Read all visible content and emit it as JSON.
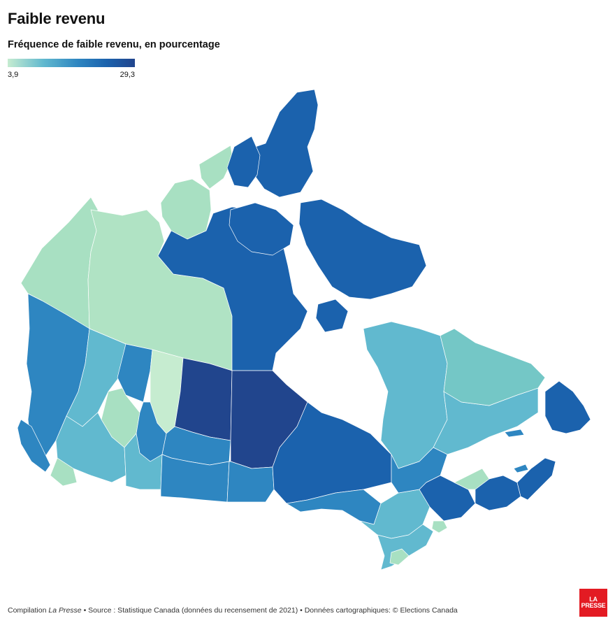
{
  "header": {
    "title": "Faible revenu",
    "subtitle": "Fréquence de faible revenu, en pourcentage"
  },
  "legend": {
    "min_label": "3,9",
    "max_label": "29,3",
    "min_value": 3.9,
    "max_value": 29.3,
    "colors": [
      "#c6ecd0",
      "#61b9cf",
      "#2e86c1",
      "#1b62ad",
      "#21458d"
    ]
  },
  "footer": {
    "prefix": "Compilation ",
    "publication": "La Presse",
    "suffix": " • Source : Statistique Canada (données du recensement de 2021) • Données cartographiques: © Elections Canada"
  },
  "logo": {
    "line1": "LA",
    "line2": "PRESSE",
    "color": "#e31b23"
  }
}
